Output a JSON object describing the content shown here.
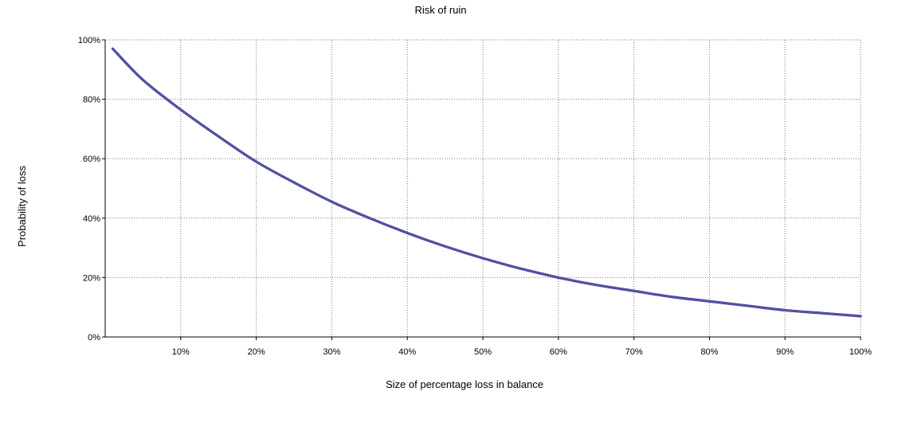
{
  "chart_data": {
    "type": "line",
    "title": "Risk of ruin",
    "xlabel": "Size of percentage loss in balance",
    "ylabel": "Probability of loss",
    "xlim": [
      0,
      100
    ],
    "ylim": [
      0,
      100
    ],
    "x_ticks": [
      10,
      20,
      30,
      40,
      50,
      60,
      70,
      80,
      90,
      100
    ],
    "y_ticks": [
      0,
      20,
      40,
      60,
      80,
      100
    ],
    "x_tick_labels": [
      "10%",
      "20%",
      "30%",
      "40%",
      "50%",
      "60%",
      "70%",
      "80%",
      "90%",
      "100%"
    ],
    "y_tick_labels": [
      "0%",
      "20%",
      "40%",
      "60%",
      "80%",
      "100%"
    ],
    "grid": true,
    "line_color": "#5555aa",
    "series": [
      {
        "x": [
          1,
          5,
          10,
          15,
          20,
          25,
          30,
          35,
          40,
          45,
          50,
          55,
          60,
          65,
          70,
          75,
          80,
          85,
          90,
          95,
          100
        ],
        "values": [
          97,
          86.5,
          76.5,
          67.5,
          59,
          52,
          45.5,
          40,
          35,
          30.5,
          26.5,
          23,
          20,
          17.5,
          15.5,
          13.5,
          12,
          10.5,
          9,
          8,
          7
        ]
      }
    ]
  }
}
